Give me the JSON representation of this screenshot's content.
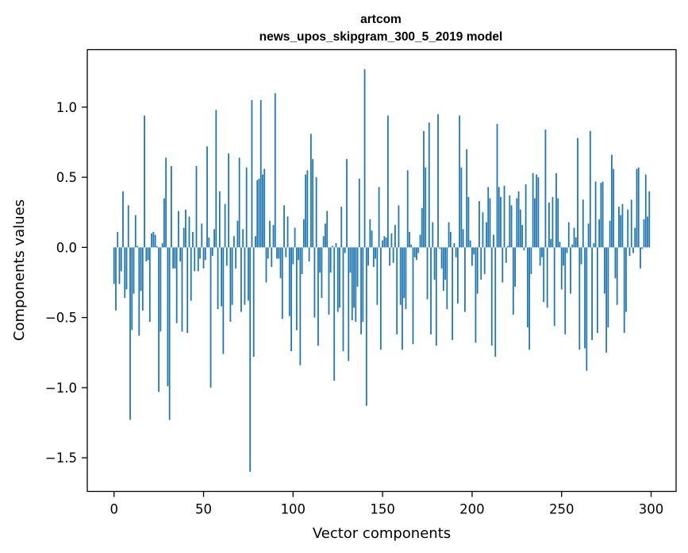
{
  "chart_data": {
    "type": "bar",
    "title_line1": "artcom",
    "title_line2": "news_upos_skipgram_300_5_2019 model",
    "xlabel": "Vector components",
    "ylabel": "Components values",
    "xlim": [
      -14.95,
      313.95
    ],
    "ylim": [
      -1.74,
      1.41
    ],
    "xticks": [
      0,
      50,
      100,
      150,
      200,
      250,
      300
    ],
    "yticks": [
      -1.5,
      -1.0,
      -0.5,
      0.0,
      0.5,
      1.0
    ],
    "ytick_labels": [
      "−1.5",
      "−1.0",
      "−0.5",
      "0.0",
      "0.5",
      "1.0"
    ],
    "bar_color": "#1f77b4",
    "grid": false,
    "values": [
      -0.26,
      -0.45,
      0.11,
      -0.26,
      -0.17,
      0.4,
      -0.36,
      -0.3,
      0.3,
      -1.23,
      -0.59,
      -0.33,
      0.23,
      0.01,
      -0.63,
      -0.31,
      -0.45,
      0.94,
      -0.1,
      -0.09,
      -0.53,
      0.1,
      0.11,
      0.09,
      0.01,
      -1.03,
      -0.6,
      0.03,
      0.35,
      0.64,
      -0.99,
      -1.23,
      0.58,
      -0.15,
      -0.15,
      -0.54,
      0.26,
      -0.1,
      -0.6,
      0.14,
      0.27,
      -0.61,
      0.22,
      -0.38,
      0.11,
      -0.17,
      0.58,
      -0.17,
      -0.08,
      0.17,
      -0.15,
      -0.09,
      0.72,
      0.07,
      -1.0,
      -0.06,
      0.13,
      0.98,
      -0.44,
      0.4,
      -0.42,
      -0.76,
      0.31,
      -0.13,
      0.67,
      -0.53,
      -0.41,
      0.08,
      -0.15,
      0.19,
      0.64,
      -0.46,
      0.13,
      -0.41,
      0.57,
      -0.38,
      -1.6,
      1.05,
      -0.78,
      0.08,
      0.48,
      0.49,
      1.05,
      0.52,
      0.56,
      -0.25,
      -0.08,
      0.19,
      -0.14,
      0.16,
      1.1,
      -0.08,
      -0.08,
      -0.22,
      -0.51,
      0.3,
      -0.07,
      0.22,
      -0.49,
      -0.74,
      -0.12,
      0.14,
      -0.59,
      -0.09,
      -0.84,
      -0.19,
      0.2,
      0.52,
      0.55,
      -0.1,
      0.81,
      0.63,
      -0.5,
      0.5,
      -0.7,
      -0.18,
      -0.36,
      0.08,
      0.17,
      0.26,
      -0.48,
      -0.18,
      0.01,
      -0.95,
      0.03,
      -0.46,
      -0.43,
      0.29,
      -0.74,
      -0.04,
      0.63,
      -0.81,
      -0.18,
      -0.52,
      -0.43,
      -0.53,
      -0.28,
      0.49,
      -0.62,
      -0.53,
      1.27,
      -1.13,
      -0.13,
      0.2,
      0.12,
      -0.14,
      -0.08,
      -0.41,
      0.43,
      -0.73,
      0.05,
      0.08,
      0.07,
      0.94,
      -0.13,
      0.1,
      -0.11,
      0.16,
      -0.62,
      0.3,
      -0.41,
      -0.73,
      -0.36,
      -0.44,
      0.55,
      0.11,
      0.02,
      -0.69,
      -0.07,
      -0.09,
      -0.04,
      0.09,
      0.28,
      0.83,
      0.57,
      -0.37,
      0.89,
      -0.62,
      0.18,
      -0.23,
      -0.7,
      0.95,
      -0.01,
      -0.15,
      -0.31,
      -0.23,
      -0.44,
      0.18,
      0.11,
      -0.66,
      0.03,
      -0.07,
      -0.4,
      0.94,
      0.57,
      0.13,
      -0.46,
      0.7,
      0.36,
      0.05,
      -0.13,
      -0.05,
      -0.68,
      -0.33,
      0.33,
      -0.23,
      0.25,
      -0.19,
      0.18,
      0.43,
      0.35,
      -0.7,
      0.09,
      -0.78,
      0.88,
      0.43,
      0.36,
      -0.25,
      0.44,
      -0.11,
      0.01,
      0.37,
      0.3,
      -0.48,
      -0.28,
      0.35,
      0.4,
      0.27,
      0.16,
      -0.02,
      0.45,
      -0.57,
      -0.73,
      -0.19,
      0.53,
      0.35,
      0.52,
      0.5,
      -0.13,
      -0.07,
      -0.39,
      0.84,
      -0.43,
      0.32,
      0.06,
      0.36,
      -0.56,
      0.53,
      0.35,
      0.04,
      -0.3,
      -0.13,
      -0.62,
      -0.04,
      0.18,
      -0.33,
      0.02,
      0.14,
      0.07,
      0.78,
      -0.73,
      -0.12,
      0.34,
      -0.72,
      -0.88,
      0.17,
      0.83,
      -0.66,
      0.03,
      0.47,
      -0.61,
      0.2,
      0.46,
      0.47,
      -0.33,
      -0.75,
      -0.57,
      0.19,
      0.66,
      0.56,
      -0.22,
      -0.41,
      0.29,
      0.23,
      0.31,
      -0.61,
      -0.46,
      0.27,
      -0.06,
      0.34,
      -0.04,
      0.14,
      0.56,
      0.57,
      -0.15,
      -0.01,
      0.2,
      0.52,
      0.22,
      0.4
    ]
  }
}
